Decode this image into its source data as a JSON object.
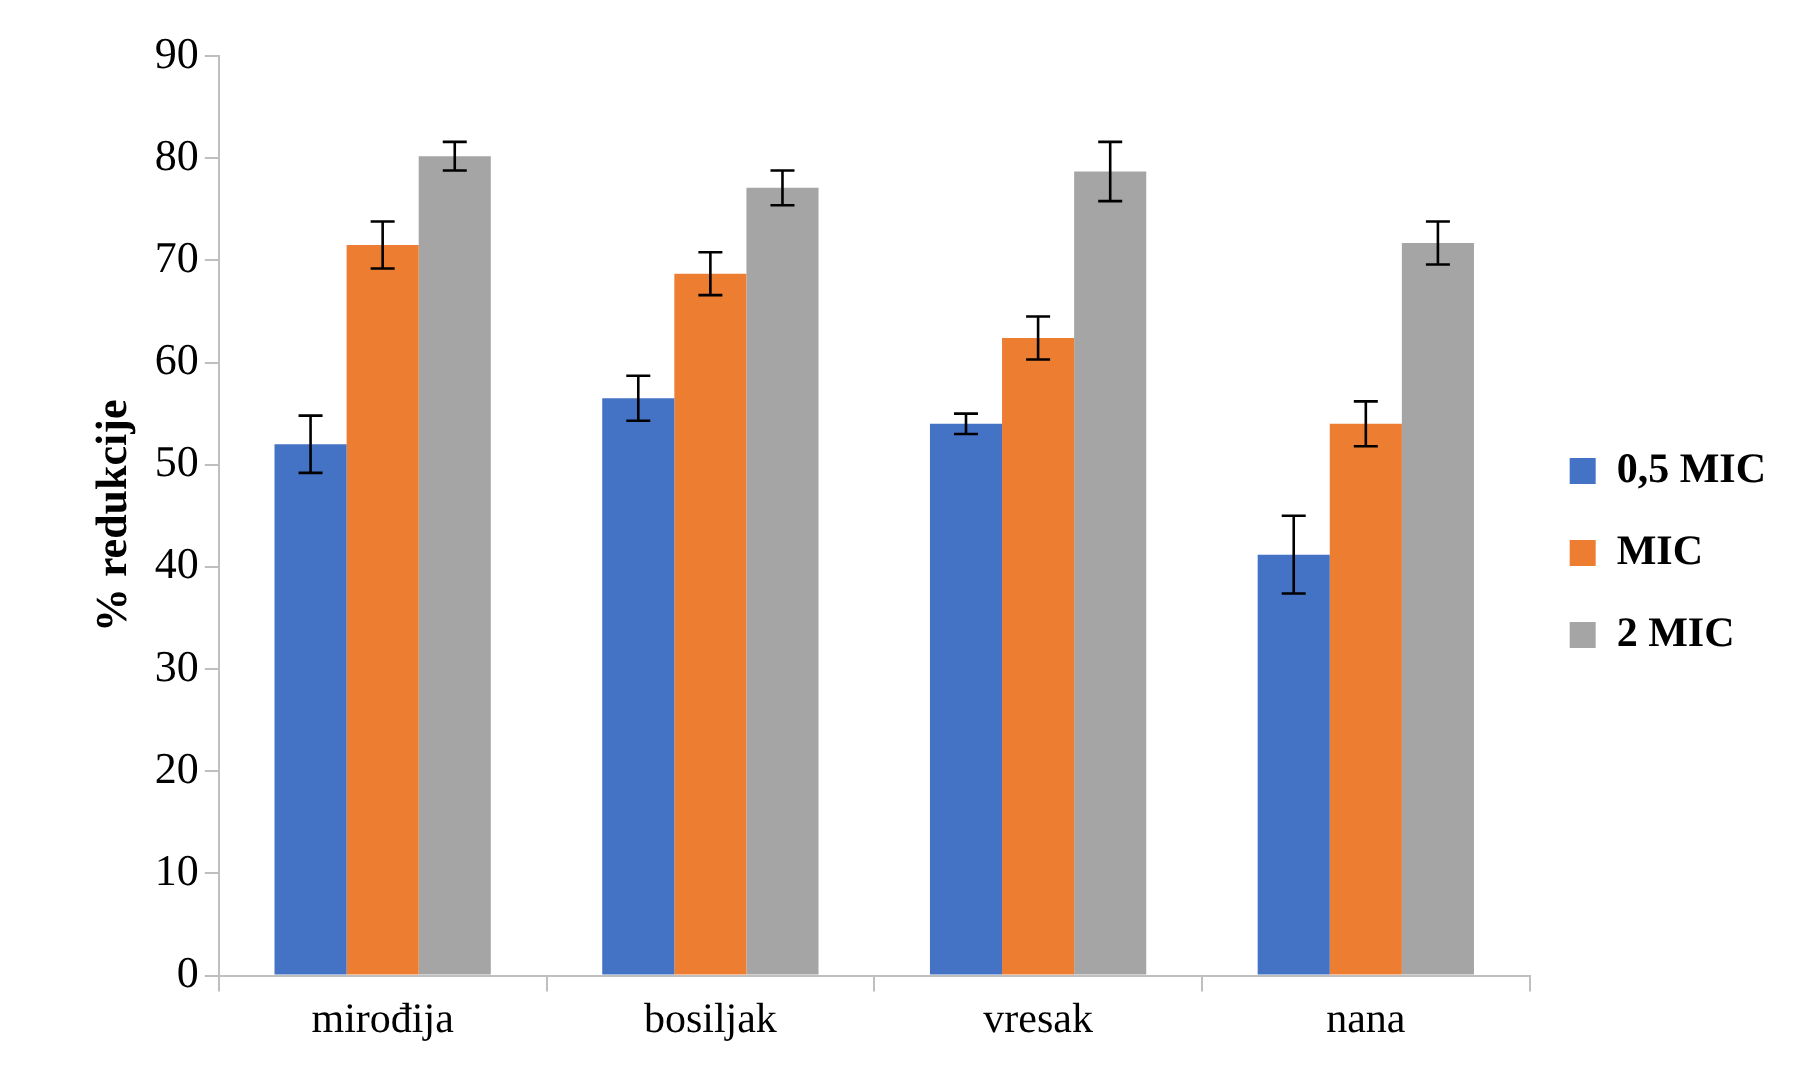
{
  "chart_data": {
    "type": "bar",
    "ylabel": "% redukcije",
    "categories": [
      "mirođija",
      "bosiljak",
      "vresak",
      "nana"
    ],
    "series": [
      {
        "name": "0,5 MIC",
        "color": "#4472c4",
        "values": [
          52.0,
          56.5,
          54.0,
          41.2
        ],
        "errors": [
          2.8,
          2.2,
          1.0,
          3.8
        ]
      },
      {
        "name": "MIC",
        "color": "#ed7d31",
        "values": [
          71.5,
          68.7,
          62.4,
          54.0
        ],
        "errors": [
          2.3,
          2.1,
          2.1,
          2.2
        ]
      },
      {
        "name": "2 MIC",
        "color": "#a5a5a5",
        "values": [
          80.2,
          77.1,
          78.7,
          71.7
        ],
        "errors": [
          1.4,
          1.7,
          2.9,
          2.1
        ]
      }
    ],
    "ylim": [
      0,
      90
    ],
    "yticks": [
      0,
      10,
      20,
      30,
      40,
      50,
      60,
      70,
      80,
      90
    ],
    "grid": false,
    "legend": "right"
  }
}
